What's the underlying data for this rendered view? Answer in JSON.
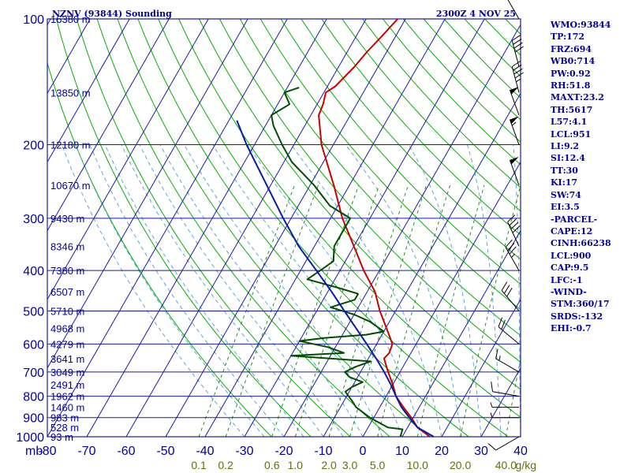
{
  "header": {
    "station": "NZNV (93844) Sounding",
    "valid": "2300Z  4 NOV 25"
  },
  "colors": {
    "grid": "#1a1aa8",
    "dry_adiabat": "#00b000",
    "mixing_ratio": "#2a8a2a",
    "moist_adiabat": "#5aa7d8",
    "temperature": "#c80000",
    "dewpoint": "#004d00",
    "parcel": "#0a1aa6",
    "wind": "#000000",
    "index_text": "#00009c"
  },
  "indices": [
    "WMO:93844",
    "TP:172",
    "FRZ:694",
    "WB0:714",
    "PW:0.92",
    "RH:51.8",
    "MAXT:23.2",
    "TH:5617",
    "L57:4.1",
    "LCL:951",
    "LI:9.2",
    "SI:12.4",
    "TT:30",
    "KI:17",
    "SW:74",
    "EI:3.5",
    "-PARCEL-",
    "CAPE:12",
    "CINH:66238",
    "LCL:900",
    "CAP:9.5",
    "LFC:-1",
    "-WIND-",
    "STM:360/17",
    "SRDS:-132",
    "EHI:-0.7"
  ],
  "chart_data": {
    "type": "line",
    "skew_t": true,
    "xlabel": "",
    "ylabel": "mb",
    "ylim": [
      1000,
      100
    ],
    "xlim": [
      -80,
      40
    ],
    "log_scale_y": true,
    "pressure_ticks": [
      100,
      200,
      300,
      400,
      500,
      600,
      700,
      800,
      900,
      1000
    ],
    "isotherm_ticks": [
      -80,
      -70,
      -60,
      -50,
      -40,
      -30,
      -20,
      -10,
      0,
      10,
      20,
      30,
      40
    ],
    "height_labels": [
      {
        "p": 100,
        "label": "16380 m"
      },
      {
        "p": 150,
        "label": "13850 m"
      },
      {
        "p": 200,
        "label": "12180 m"
      },
      {
        "p": 250,
        "label": "10670 m"
      },
      {
        "p": 300,
        "label": "9430 m"
      },
      {
        "p": 350,
        "label": "8346 m"
      },
      {
        "p": 400,
        "label": "7380 m"
      },
      {
        "p": 450,
        "label": "6507 m"
      },
      {
        "p": 500,
        "label": "5710 m"
      },
      {
        "p": 550,
        "label": "4968 m"
      },
      {
        "p": 600,
        "label": "4279 m"
      },
      {
        "p": 650,
        "label": "3641 m"
      },
      {
        "p": 700,
        "label": "3049 m"
      },
      {
        "p": 750,
        "label": "2491 m"
      },
      {
        "p": 800,
        "label": "1962 m"
      },
      {
        "p": 850,
        "label": "1460 m"
      },
      {
        "p": 900,
        "label": "983 m"
      },
      {
        "p": 950,
        "label": "528 m"
      },
      {
        "p": 1000,
        "label": "93 m"
      }
    ],
    "mixing_ratio_labels": [
      {
        "w": 0.1,
        "label": "0.1"
      },
      {
        "w": 0.2,
        "label": "0.2"
      },
      {
        "w": 0.6,
        "label": "0.6"
      },
      {
        "w": 1.0,
        "label": "1.0"
      },
      {
        "w": 2.0,
        "label": "2.0"
      },
      {
        "w": 3.0,
        "label": "3.0"
      },
      {
        "w": 5.0,
        "label": "5.0"
      },
      {
        "w": 10.0,
        "label": "10.0"
      },
      {
        "w": 20.0,
        "label": "20.0"
      },
      {
        "w": 40.0,
        "label": "40.0"
      }
    ],
    "mixing_ratio_unit": "g/kg",
    "series": [
      {
        "key": "temperature",
        "points": [
          [
            1010,
            19.0
          ],
          [
            1000,
            17.0
          ],
          [
            950,
            12.5
          ],
          [
            900,
            9.5
          ],
          [
            850,
            6.0
          ],
          [
            800,
            2.5
          ],
          [
            750,
            0.0
          ],
          [
            700,
            -3.0
          ],
          [
            650,
            -6.0
          ],
          [
            630,
            -5.5
          ],
          [
            600,
            -6.0
          ],
          [
            560,
            -9.0
          ],
          [
            500,
            -14.0
          ],
          [
            450,
            -18.0
          ],
          [
            400,
            -24.0
          ],
          [
            350,
            -30.0
          ],
          [
            300,
            -37.0
          ],
          [
            250,
            -44.0
          ],
          [
            200,
            -53.0
          ],
          [
            170,
            -58.0
          ],
          [
            160,
            -58.5
          ],
          [
            150,
            -59.5
          ],
          [
            145,
            -58.0
          ],
          [
            130,
            -56.0
          ],
          [
            120,
            -55.0
          ],
          [
            110,
            -53.5
          ],
          [
            100,
            -52.0
          ]
        ]
      },
      {
        "key": "dewpoint",
        "points": [
          [
            1010,
            10.0
          ],
          [
            1000,
            9.5
          ],
          [
            960,
            9.0
          ],
          [
            950,
            5.0
          ],
          [
            900,
            -1.0
          ],
          [
            850,
            -6.0
          ],
          [
            820,
            -8.0
          ],
          [
            780,
            -11.0
          ],
          [
            760,
            -10.0
          ],
          [
            740,
            -8.0
          ],
          [
            720,
            -12.0
          ],
          [
            700,
            -14.0
          ],
          [
            680,
            -12.0
          ],
          [
            660,
            -9.0
          ],
          [
            640,
            -30.0
          ],
          [
            630,
            -17.0
          ],
          [
            610,
            -22.0
          ],
          [
            590,
            -30.0
          ],
          [
            580,
            -24.0
          ],
          [
            570,
            -14.0
          ],
          [
            560,
            -10.0
          ],
          [
            530,
            -15.0
          ],
          [
            510,
            -20.0
          ],
          [
            490,
            -27.0
          ],
          [
            470,
            -22.0
          ],
          [
            455,
            -22.0
          ],
          [
            440,
            -28.0
          ],
          [
            420,
            -37.0
          ],
          [
            400,
            -35.0
          ],
          [
            380,
            -33.0
          ],
          [
            350,
            -35.0
          ],
          [
            300,
            -35.0
          ],
          [
            280,
            -42.0
          ],
          [
            250,
            -49.0
          ],
          [
            220,
            -58.0
          ],
          [
            200,
            -63.0
          ],
          [
            180,
            -68.0
          ],
          [
            170,
            -70.0
          ],
          [
            160,
            -67.0
          ],
          [
            150,
            -70.0
          ],
          [
            146,
            -67.0
          ]
        ]
      },
      {
        "key": "parcel",
        "points": [
          [
            1000,
            18.0
          ],
          [
            950,
            12.5
          ],
          [
            900,
            9.0
          ],
          [
            850,
            5.5
          ],
          [
            800,
            2.5
          ],
          [
            750,
            -0.5
          ],
          [
            700,
            -4.0
          ],
          [
            650,
            -8.0
          ],
          [
            600,
            -12.5
          ],
          [
            550,
            -17.5
          ],
          [
            500,
            -23.0
          ],
          [
            450,
            -29.0
          ],
          [
            400,
            -36.0
          ],
          [
            350,
            -44.0
          ],
          [
            300,
            -52.0
          ],
          [
            250,
            -61.0
          ],
          [
            200,
            -72.0
          ],
          [
            175,
            -78.0
          ]
        ]
      }
    ],
    "winds": [
      {
        "p": 1000,
        "dir": 240,
        "spd": 10
      },
      {
        "p": 900,
        "dir": 270,
        "spd": 5
      },
      {
        "p": 850,
        "dir": 270,
        "spd": 5
      },
      {
        "p": 800,
        "dir": 280,
        "spd": 10
      },
      {
        "p": 700,
        "dir": 300,
        "spd": 15
      },
      {
        "p": 600,
        "dir": 310,
        "spd": 20
      },
      {
        "p": 500,
        "dir": 320,
        "spd": 30
      },
      {
        "p": 400,
        "dir": 330,
        "spd": 35
      },
      {
        "p": 350,
        "dir": 335,
        "spd": 40
      },
      {
        "p": 250,
        "dir": 340,
        "spd": 50
      },
      {
        "p": 200,
        "dir": 340,
        "spd": 55
      },
      {
        "p": 170,
        "dir": 340,
        "spd": 50
      },
      {
        "p": 150,
        "dir": 345,
        "spd": 45
      },
      {
        "p": 130,
        "dir": 345,
        "spd": 40
      },
      {
        "p": 100,
        "dir": 330,
        "spd": 20
      }
    ]
  }
}
